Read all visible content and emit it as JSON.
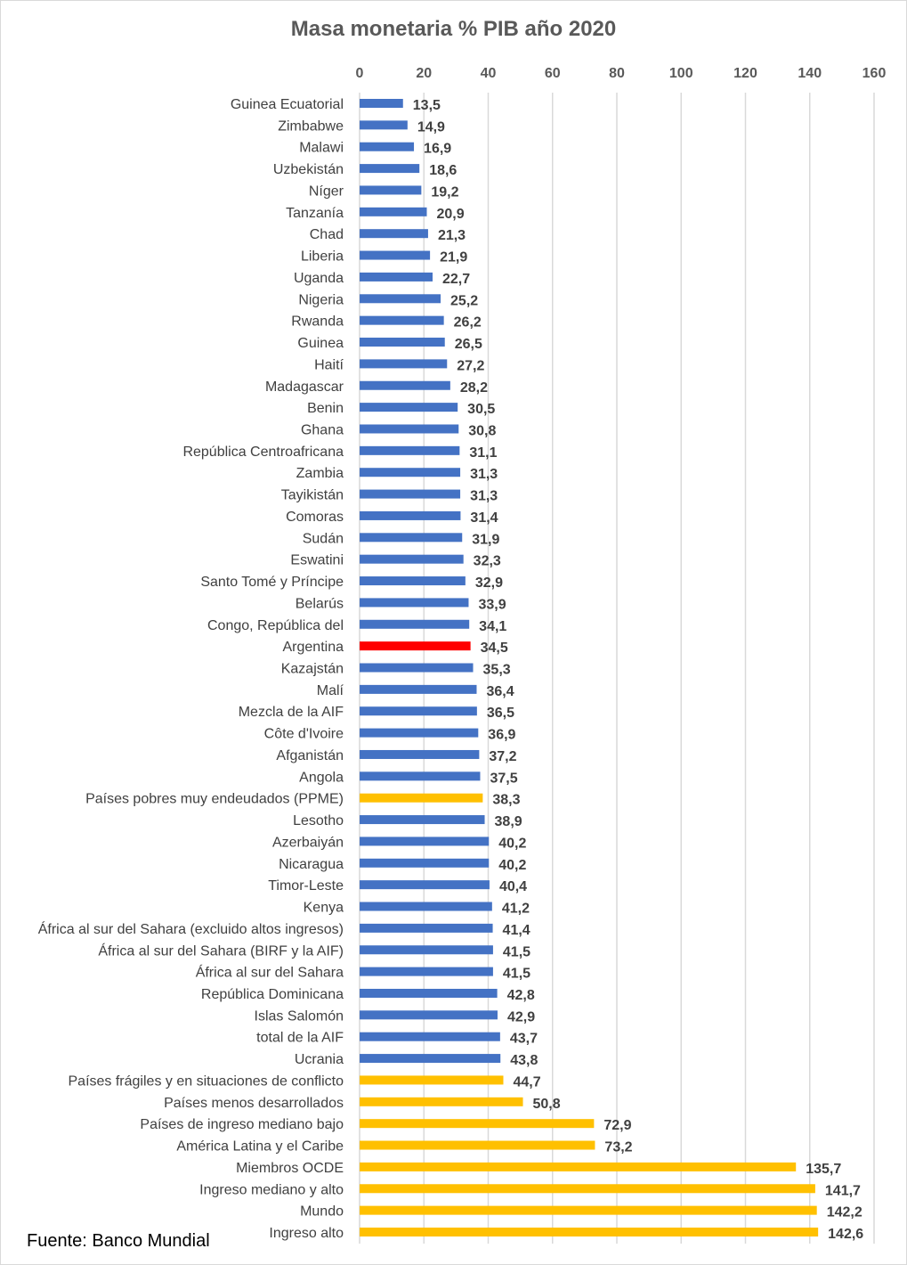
{
  "chart_data": {
    "type": "bar",
    "orientation": "horizontal",
    "title": "Masa monetaria % PIB año 2020",
    "source": "Fuente: Banco Mundial",
    "xlim": [
      0,
      160
    ],
    "xticks": [
      0,
      20,
      40,
      60,
      80,
      100,
      120,
      140,
      160
    ],
    "axis_position": "top",
    "grid": true,
    "colors": {
      "country": "#4472C4",
      "aggregate": "#FFC000",
      "highlight": "#FF0000"
    },
    "categories": [
      "Guinea Ecuatorial",
      "Zimbabwe",
      "Malawi",
      "Uzbekistán",
      "Níger",
      "Tanzanía",
      "Chad",
      "Liberia",
      "Uganda",
      "Nigeria",
      "Rwanda",
      "Guinea",
      "Haití",
      "Madagascar",
      "Benin",
      "Ghana",
      "República Centroafricana",
      "Zambia",
      "Tayikistán",
      "Comoras",
      "Sudán",
      "Eswatini",
      "Santo Tomé y Príncipe",
      "Belarús",
      "Congo, República del",
      "Argentina",
      "Kazajstán",
      "Malí",
      "Mezcla de la AIF",
      "Côte d'Ivoire",
      "Afganistán",
      "Angola",
      "Países pobres muy endeudados (PPME)",
      "Lesotho",
      "Azerbaiyán",
      "Nicaragua",
      "Timor-Leste",
      "Kenya",
      "África al sur del Sahara (excluido altos ingresos)",
      "África al sur del Sahara (BIRF y la AIF)",
      "África al sur del Sahara",
      "República Dominicana",
      "Islas Salomón",
      "total de la AIF",
      "Ucrania",
      "Países frágiles y en situaciones de conflicto",
      "Países menos desarrollados",
      "Países de ingreso mediano bajo",
      "América Latina y el Caribe",
      "Miembros OCDE",
      "Ingreso mediano y alto",
      "Mundo",
      "Ingreso alto"
    ],
    "values": [
      13.5,
      14.9,
      16.9,
      18.6,
      19.2,
      20.9,
      21.3,
      21.9,
      22.7,
      25.2,
      26.2,
      26.5,
      27.2,
      28.2,
      30.5,
      30.8,
      31.1,
      31.3,
      31.3,
      31.4,
      31.9,
      32.3,
      32.9,
      33.9,
      34.1,
      34.5,
      35.3,
      36.4,
      36.5,
      36.9,
      37.2,
      37.5,
      38.3,
      38.9,
      40.2,
      40.2,
      40.4,
      41.2,
      41.4,
      41.5,
      41.5,
      42.8,
      42.9,
      43.7,
      43.8,
      44.7,
      50.8,
      72.9,
      73.2,
      135.7,
      141.7,
      142.2,
      142.6
    ],
    "labels": [
      "13,5",
      "14,9",
      "16,9",
      "18,6",
      "19,2",
      "20,9",
      "21,3",
      "21,9",
      "22,7",
      "25,2",
      "26,2",
      "26,5",
      "27,2",
      "28,2",
      "30,5",
      "30,8",
      "31,1",
      "31,3",
      "31,3",
      "31,4",
      "31,9",
      "32,3",
      "32,9",
      "33,9",
      "34,1",
      "34,5",
      "35,3",
      "36,4",
      "36,5",
      "36,9",
      "37,2",
      "37,5",
      "38,3",
      "38,9",
      "40,2",
      "40,2",
      "40,4",
      "41,2",
      "41,4",
      "41,5",
      "41,5",
      "42,8",
      "42,9",
      "43,7",
      "43,8",
      "44,7",
      "50,8",
      "72,9",
      "73,2",
      "135,7",
      "141,7",
      "142,2",
      "142,6"
    ],
    "bar_color_keys": [
      "country",
      "country",
      "country",
      "country",
      "country",
      "country",
      "country",
      "country",
      "country",
      "country",
      "country",
      "country",
      "country",
      "country",
      "country",
      "country",
      "country",
      "country",
      "country",
      "country",
      "country",
      "country",
      "country",
      "country",
      "country",
      "highlight",
      "country",
      "country",
      "country",
      "country",
      "country",
      "country",
      "aggregate",
      "country",
      "country",
      "country",
      "country",
      "country",
      "country",
      "country",
      "country",
      "country",
      "country",
      "country",
      "country",
      "aggregate",
      "aggregate",
      "aggregate",
      "aggregate",
      "aggregate",
      "aggregate",
      "aggregate",
      "aggregate"
    ]
  }
}
